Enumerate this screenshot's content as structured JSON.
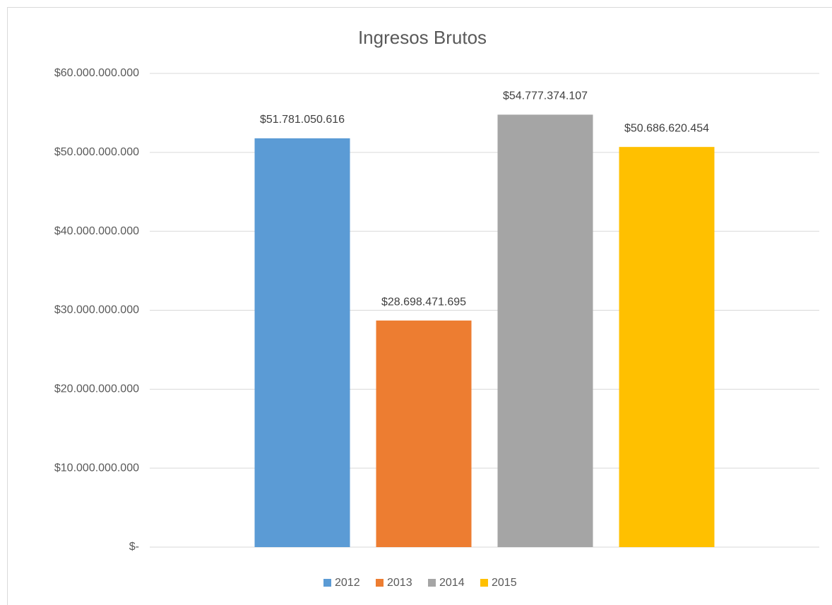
{
  "chart_data": {
    "type": "bar",
    "title": "Ingresos Brutos",
    "categories": [
      null
    ],
    "series": [
      {
        "name": "2012",
        "color": "#5b9bd5",
        "values": [
          51781050616
        ],
        "value_labels": [
          "$51.781.050.616"
        ]
      },
      {
        "name": "2013",
        "color": "#ed7d31",
        "values": [
          28698471695
        ],
        "value_labels": [
          "$28.698.471.695"
        ]
      },
      {
        "name": "2014",
        "color": "#a5a5a5",
        "values": [
          54777374107
        ],
        "value_labels": [
          "$54.777.374.107"
        ]
      },
      {
        "name": "2015",
        "color": "#ffc000",
        "values": [
          50686620454
        ],
        "value_labels": [
          "$50.686.620.454"
        ]
      }
    ],
    "ylim": [
      0,
      60000000000
    ],
    "yticks": [
      {
        "value": 0,
        "label": "$-"
      },
      {
        "value": 10000000000,
        "label": "$10.000.000.000"
      },
      {
        "value": 20000000000,
        "label": "$20.000.000.000"
      },
      {
        "value": 30000000000,
        "label": "$30.000.000.000"
      },
      {
        "value": 40000000000,
        "label": "$40.000.000.000"
      },
      {
        "value": 50000000000,
        "label": "$50.000.000.000"
      },
      {
        "value": 60000000000,
        "label": "$60.000.000.000"
      }
    ],
    "grid": true,
    "legend": "bottom"
  }
}
